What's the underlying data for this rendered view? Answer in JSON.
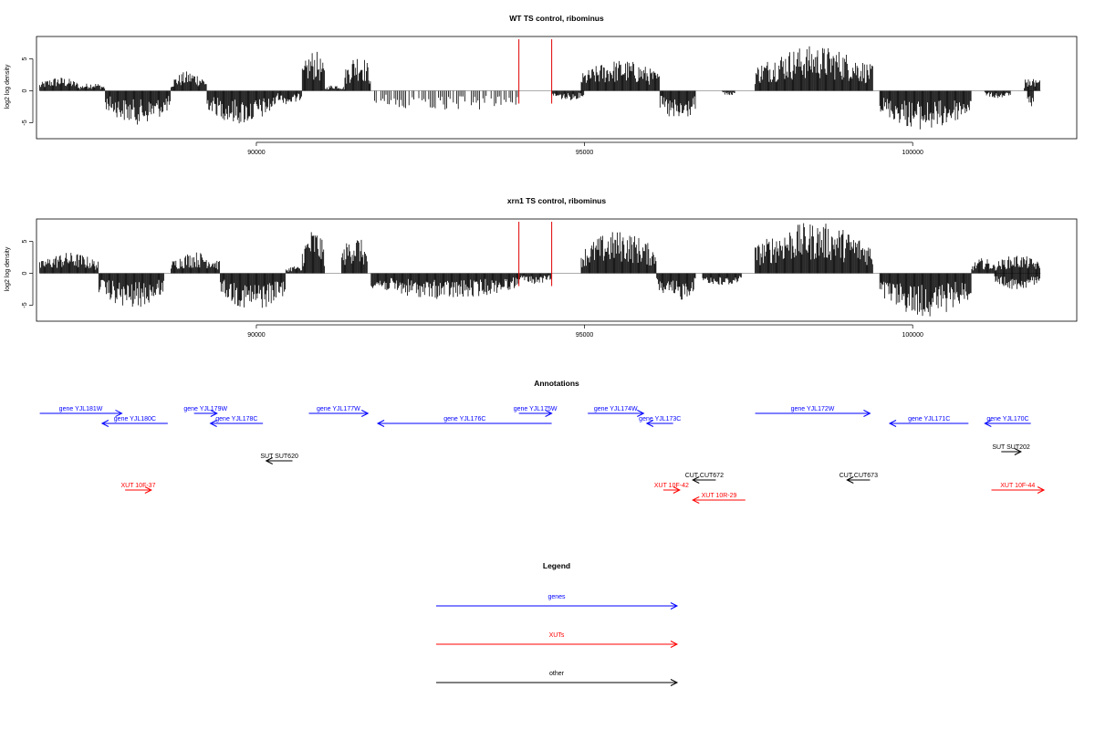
{
  "chart_data": [
    {
      "type": "bar",
      "title": "WT TS control, ribominus",
      "ylabel": "log2 log density",
      "xlim": [
        86650,
        102500
      ],
      "ylim": [
        -7.5,
        8.5
      ],
      "yticks": [
        -5,
        0,
        5
      ],
      "xticks": [
        90000,
        95000,
        100000
      ],
      "xtick_labels": [
        "90000",
        "95000",
        "100000"
      ],
      "ytick_labels": [
        "-5",
        "0",
        "5"
      ],
      "markers_x": [
        94000,
        94500
      ],
      "marker_color": "#e00000",
      "regions": [
        {
          "start": 86700,
          "end": 87300,
          "max": 2.2
        },
        {
          "start": 87300,
          "end": 87700,
          "max": 1.3
        },
        {
          "start": 87700,
          "end": 88700,
          "max": -5.3
        },
        {
          "start": 88700,
          "end": 89250,
          "max": 3.1
        },
        {
          "start": 89250,
          "end": 90300,
          "max": -5.3
        },
        {
          "start": 90300,
          "end": 90700,
          "max": -2.2
        },
        {
          "start": 90700,
          "end": 91050,
          "max": 6.4
        },
        {
          "start": 91050,
          "end": 91350,
          "max": 1.0
        },
        {
          "start": 91350,
          "end": 91750,
          "max": 6.0
        },
        {
          "start": 91800,
          "end": 94100,
          "max": -3.4
        },
        {
          "start": 94500,
          "end": 95000,
          "max": -1.5
        },
        {
          "start": 94950,
          "end": 96150,
          "max": 4.9
        },
        {
          "start": 96150,
          "end": 96700,
          "max": -5.2
        },
        {
          "start": 97100,
          "end": 97300,
          "max": -0.8
        },
        {
          "start": 97600,
          "end": 99400,
          "max": 7.1
        },
        {
          "start": 99500,
          "end": 100900,
          "max": -6.2
        },
        {
          "start": 101100,
          "end": 101500,
          "max": -1.2
        },
        {
          "start": 101700,
          "end": 101850,
          "max": 2.8
        },
        {
          "start": 101750,
          "end": 101850,
          "max": -2.8
        },
        {
          "start": 101850,
          "end": 101950,
          "max": 3.1
        }
      ]
    },
    {
      "type": "bar",
      "title": "xrn1 TS control, ribominus",
      "ylabel": "log2 log density",
      "xlim": [
        86650,
        102500
      ],
      "ylim": [
        -7.5,
        8.5
      ],
      "yticks": [
        -5,
        0,
        5
      ],
      "xticks": [
        90000,
        95000,
        100000
      ],
      "xtick_labels": [
        "90000",
        "95000",
        "100000"
      ],
      "ytick_labels": [
        "-5",
        "0",
        "5"
      ],
      "markers_x": [
        94000,
        94500
      ],
      "marker_color": "#e00000",
      "regions": [
        {
          "start": 86700,
          "end": 87600,
          "max": 3.3
        },
        {
          "start": 87600,
          "end": 88600,
          "max": -5.6
        },
        {
          "start": 88700,
          "end": 89450,
          "max": 3.4
        },
        {
          "start": 89450,
          "end": 90450,
          "max": -5.8
        },
        {
          "start": 90450,
          "end": 90700,
          "max": 1.2
        },
        {
          "start": 90700,
          "end": 91050,
          "max": 7.1
        },
        {
          "start": 91300,
          "end": 91700,
          "max": 6.1
        },
        {
          "start": 91750,
          "end": 94000,
          "max": -4.1
        },
        {
          "start": 94000,
          "end": 94500,
          "max": -1.7
        },
        {
          "start": 94950,
          "end": 96100,
          "max": 6.7
        },
        {
          "start": 96100,
          "end": 96700,
          "max": -4.5
        },
        {
          "start": 96800,
          "end": 97400,
          "max": -2.1
        },
        {
          "start": 97600,
          "end": 99400,
          "max": 8.0
        },
        {
          "start": 99500,
          "end": 100900,
          "max": -6.8
        },
        {
          "start": 100900,
          "end": 101250,
          "max": 2.4
        },
        {
          "start": 101250,
          "end": 101950,
          "max": 2.9
        },
        {
          "start": 101250,
          "end": 101950,
          "max": -2.6
        }
      ]
    }
  ],
  "annotations": {
    "title": "Annotations",
    "xlim": [
      86650,
      102500
    ],
    "features": [
      {
        "label": "gene YJL181W",
        "category": "gene",
        "start": 86700,
        "end": 87950,
        "dir": "right",
        "row": 0
      },
      {
        "label": "gene YJL180C",
        "category": "gene",
        "start": 87650,
        "end": 88650,
        "dir": "left",
        "row": 1
      },
      {
        "label": "gene YJL179W",
        "category": "gene",
        "start": 89050,
        "end": 89400,
        "dir": "right",
        "row": 0
      },
      {
        "label": "gene YJL178C",
        "category": "gene",
        "start": 89300,
        "end": 90100,
        "dir": "left",
        "row": 1
      },
      {
        "label": "gene YJL177W",
        "category": "gene",
        "start": 90800,
        "end": 91700,
        "dir": "right",
        "row": 0
      },
      {
        "label": "gene YJL176C",
        "category": "gene",
        "start": 91850,
        "end": 94500,
        "dir": "left",
        "row": 1
      },
      {
        "label": "gene YJL175W",
        "category": "gene",
        "start": 94000,
        "end": 94500,
        "dir": "right",
        "row": 0
      },
      {
        "label": "gene YJL174W",
        "category": "gene",
        "start": 95050,
        "end": 95900,
        "dir": "right",
        "row": 0
      },
      {
        "label": "gene YJL173C",
        "category": "gene",
        "start": 95950,
        "end": 96350,
        "dir": "left",
        "row": 1
      },
      {
        "label": "gene YJL172W",
        "category": "gene",
        "start": 97600,
        "end": 99350,
        "dir": "right",
        "row": 0
      },
      {
        "label": "gene YJL171C",
        "category": "gene",
        "start": 99650,
        "end": 100850,
        "dir": "left",
        "row": 1
      },
      {
        "label": "gene YJL170C",
        "category": "gene",
        "start": 101100,
        "end": 101800,
        "dir": "left",
        "row": 1
      },
      {
        "label": "SUT SUT620",
        "category": "other",
        "start": 90150,
        "end": 90550,
        "dir": "left",
        "row": 3
      },
      {
        "label": "SUT SUT202",
        "category": "other",
        "start": 101350,
        "end": 101650,
        "dir": "right",
        "row": 2
      },
      {
        "label": "CUT CUT672",
        "category": "other",
        "start": 96650,
        "end": 97000,
        "dir": "left",
        "row": 4
      },
      {
        "label": "CUT CUT673",
        "category": "other",
        "start": 99000,
        "end": 99350,
        "dir": "left",
        "row": 4
      },
      {
        "label": "XUT 10F-37",
        "category": "xut",
        "start": 88000,
        "end": 88400,
        "dir": "right",
        "row": 5
      },
      {
        "label": "XUT 10F-42",
        "category": "xut",
        "start": 96200,
        "end": 96450,
        "dir": "right",
        "row": 5
      },
      {
        "label": "XUT 10R-29",
        "category": "xut",
        "start": 96650,
        "end": 97450,
        "dir": "left",
        "row": 6
      },
      {
        "label": "XUT 10F-44",
        "category": "xut",
        "start": 101200,
        "end": 102000,
        "dir": "right",
        "row": 5
      }
    ]
  },
  "legend": {
    "title": "Legend",
    "items": [
      {
        "label": "genes",
        "color": "#0000ff"
      },
      {
        "label": "XUTs",
        "color": "#ff0000"
      },
      {
        "label": "other",
        "color": "#000000"
      }
    ]
  },
  "colors": {
    "gene": "#0000ff",
    "xut": "#ff0000",
    "other": "#000000",
    "axis": "#000000",
    "zero_line": "#909090"
  }
}
